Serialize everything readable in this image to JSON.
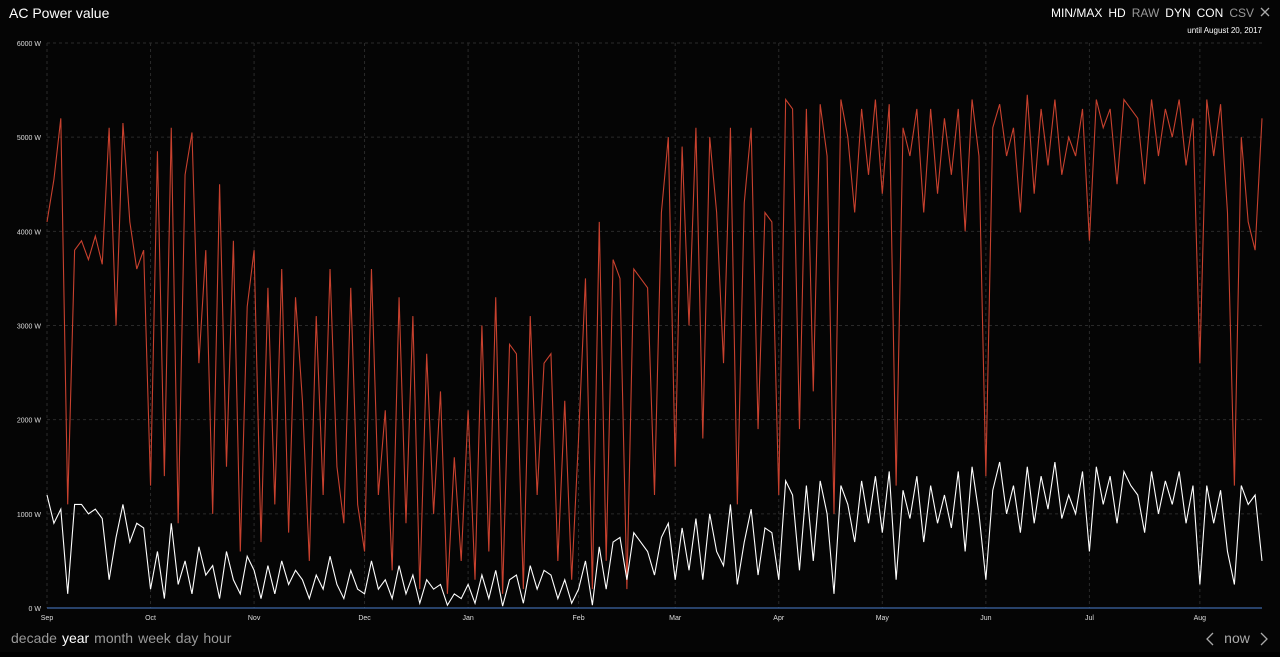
{
  "toolbar": {
    "title": "AC Power value",
    "buttons": [
      {
        "label": "MIN/MAX",
        "active": true
      },
      {
        "label": "HD",
        "active": true
      },
      {
        "label": "RAW",
        "active": false
      },
      {
        "label": "DYN",
        "active": true
      },
      {
        "label": "CON",
        "active": true
      },
      {
        "label": "CSV",
        "active": false
      }
    ],
    "until": "until August 20, 2017"
  },
  "range_nav": {
    "options": [
      {
        "label": "decade",
        "active": false
      },
      {
        "label": "year",
        "active": true
      },
      {
        "label": "month",
        "active": false
      },
      {
        "label": "week",
        "active": false
      },
      {
        "label": "day",
        "active": false
      },
      {
        "label": "hour",
        "active": false
      }
    ],
    "now": "now"
  },
  "chart_data": {
    "type": "line",
    "categories": [
      "Sep",
      null,
      null,
      null,
      null,
      null,
      null,
      null,
      null,
      null,
      null,
      null,
      null,
      null,
      null,
      "Oct",
      null,
      null,
      null,
      null,
      null,
      null,
      null,
      null,
      null,
      null,
      null,
      null,
      null,
      null,
      "Nov",
      null,
      null,
      null,
      null,
      null,
      null,
      null,
      null,
      null,
      null,
      null,
      null,
      null,
      null,
      null,
      "Dec",
      null,
      null,
      null,
      null,
      null,
      null,
      null,
      null,
      null,
      null,
      null,
      null,
      null,
      null,
      "Jan",
      null,
      null,
      null,
      null,
      null,
      null,
      null,
      null,
      null,
      null,
      null,
      null,
      null,
      null,
      null,
      "Feb",
      null,
      null,
      null,
      null,
      null,
      null,
      null,
      null,
      null,
      null,
      null,
      null,
      null,
      "Mar",
      null,
      null,
      null,
      null,
      null,
      null,
      null,
      null,
      null,
      null,
      null,
      null,
      null,
      null,
      "Apr",
      null,
      null,
      null,
      null,
      null,
      null,
      null,
      null,
      null,
      null,
      null,
      null,
      null,
      null,
      "May",
      null,
      null,
      null,
      null,
      null,
      null,
      null,
      null,
      null,
      null,
      null,
      null,
      null,
      null,
      "Jun",
      null,
      null,
      null,
      null,
      null,
      null,
      null,
      null,
      null,
      null,
      null,
      null,
      null,
      null,
      "Jul",
      null,
      null,
      null,
      null,
      null,
      null,
      null,
      null,
      null,
      null,
      null,
      null,
      null,
      null,
      null,
      "Aug",
      null,
      null,
      null,
      null,
      null,
      null,
      null,
      null,
      null
    ],
    "series": [
      {
        "color": "#c8412e",
        "values": [
          4100,
          4550,
          5200,
          1100,
          3800,
          3900,
          3700,
          3950,
          3650,
          5100,
          3000,
          5150,
          4100,
          3600,
          3800,
          1300,
          4850,
          1400,
          5100,
          900,
          4600,
          5050,
          2600,
          3800,
          1000,
          4500,
          1500,
          3900,
          600,
          3200,
          3800,
          700,
          3400,
          1100,
          3600,
          800,
          3300,
          2200,
          500,
          3100,
          1200,
          3600,
          1500,
          900,
          3400,
          1100,
          600,
          3600,
          1200,
          2100,
          400,
          3300,
          900,
          3100,
          200,
          2700,
          1000,
          2300,
          150,
          1600,
          500,
          2100,
          300,
          3000,
          600,
          3300,
          150,
          2800,
          2700,
          200,
          3100,
          1200,
          2600,
          2700,
          500,
          2200,
          300,
          1800,
          3500,
          200,
          4100,
          500,
          3700,
          3500,
          200,
          3600,
          3500,
          3400,
          1200,
          4200,
          5000,
          1500,
          4900,
          3000,
          5100,
          1800,
          5000,
          4200,
          2600,
          5100,
          1100,
          4300,
          5100,
          1900,
          4200,
          4100,
          1200,
          5400,
          5300,
          1900,
          5300,
          2300,
          5350,
          4800,
          1000,
          5400,
          5000,
          4200,
          5300,
          4600,
          5400,
          4400,
          5350,
          1300,
          5100,
          4800,
          5300,
          4200,
          5300,
          4400,
          5200,
          4600,
          5300,
          4000,
          5400,
          4800,
          1400,
          5100,
          5350,
          4800,
          5100,
          4200,
          5450,
          4400,
          5300,
          4700,
          5400,
          4600,
          5000,
          4800,
          5300,
          3900,
          5400,
          5100,
          5300,
          4500,
          5400,
          5300,
          5200,
          4500,
          5400,
          4800,
          5300,
          5000,
          5400,
          4700,
          5200,
          2600,
          5400,
          4800,
          5350,
          4200,
          1300,
          5000,
          4100,
          3800,
          5200
        ]
      },
      {
        "color": "#ffffff",
        "values": [
          1200,
          900,
          1050,
          150,
          1100,
          1100,
          1000,
          1050,
          950,
          300,
          750,
          1100,
          700,
          900,
          850,
          200,
          600,
          100,
          900,
          250,
          500,
          150,
          650,
          350,
          450,
          100,
          600,
          300,
          150,
          550,
          400,
          100,
          450,
          150,
          500,
          250,
          400,
          300,
          100,
          350,
          200,
          550,
          250,
          100,
          400,
          200,
          150,
          500,
          200,
          300,
          100,
          450,
          150,
          350,
          50,
          300,
          200,
          250,
          30,
          150,
          100,
          250,
          50,
          350,
          100,
          400,
          20,
          300,
          350,
          50,
          450,
          200,
          400,
          350,
          100,
          300,
          50,
          200,
          500,
          30,
          650,
          200,
          700,
          750,
          300,
          800,
          700,
          600,
          350,
          750,
          900,
          300,
          850,
          400,
          950,
          300,
          1000,
          600,
          450,
          1100,
          250,
          700,
          1050,
          350,
          850,
          800,
          300,
          1350,
          1200,
          400,
          1300,
          500,
          1350,
          1000,
          150,
          1300,
          1100,
          700,
          1350,
          900,
          1400,
          800,
          1450,
          300,
          1250,
          950,
          1400,
          700,
          1300,
          900,
          1200,
          850,
          1450,
          600,
          1500,
          1000,
          300,
          1250,
          1550,
          1000,
          1300,
          800,
          1500,
          900,
          1400,
          1050,
          1550,
          950,
          1200,
          1000,
          1450,
          600,
          1500,
          1100,
          1400,
          900,
          1450,
          1300,
          1200,
          800,
          1450,
          1000,
          1350,
          1100,
          1450,
          900,
          1300,
          250,
          1300,
          900,
          1250,
          600,
          250,
          1300,
          1100,
          1200,
          500
        ]
      }
    ],
    "ylim": [
      0,
      6000
    ],
    "yticks": [
      {
        "value": 0,
        "label": "0 W"
      },
      {
        "value": 1000,
        "label": "1000 W"
      },
      {
        "value": 2000,
        "label": "2000 W"
      },
      {
        "value": 3000,
        "label": "3000 W"
      },
      {
        "value": 4000,
        "label": "4000 W"
      },
      {
        "value": 5000,
        "label": "5000 W"
      },
      {
        "value": 6000,
        "label": "6000 W"
      }
    ],
    "grid": true
  }
}
